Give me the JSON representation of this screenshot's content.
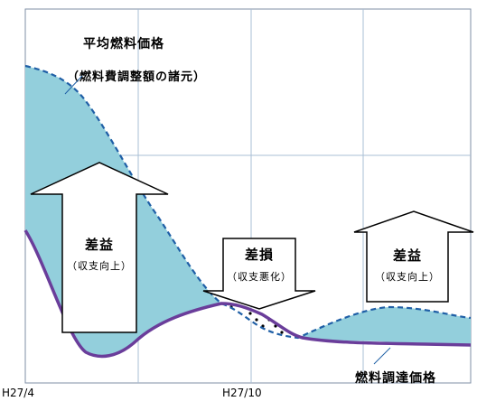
{
  "diagram": {
    "colors": {
      "fill_area": "#93cfdc",
      "fuel_price_line": "#1f5fa6",
      "procurement_line": "#6a3d9a",
      "grid": "#a9bfd6",
      "arrow_stroke": "#000000",
      "arrow_fill": "#ffffff"
    },
    "annotations": {
      "avg_price_title": "平均燃料価格",
      "avg_price_sub": "（燃料費調整額の諸元）",
      "procurement_label": "燃料調達価格"
    },
    "arrows": {
      "gain_left": {
        "main": "差益",
        "sub": "（収支向上）"
      },
      "loss_mid": {
        "main": "差損",
        "sub": "（収支悪化）"
      },
      "gain_right": {
        "main": "差益",
        "sub": "（収支向上）"
      }
    },
    "x_ticks": [
      "H27/4",
      "H27/10"
    ]
  }
}
